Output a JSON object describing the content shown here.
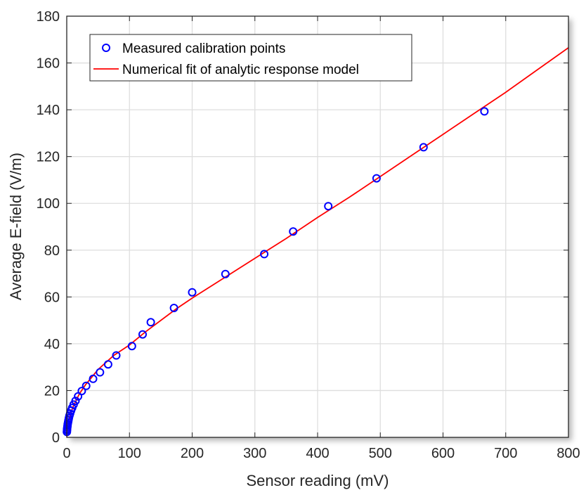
{
  "chart_data": {
    "type": "scatter",
    "title": "",
    "xlabel": "Sensor reading (mV)",
    "ylabel": "Average E-field (V/m)",
    "xlim": [
      0,
      800
    ],
    "ylim": [
      0,
      180
    ],
    "xticks": [
      0,
      100,
      200,
      300,
      400,
      500,
      600,
      700,
      800
    ],
    "yticks": [
      0,
      20,
      40,
      60,
      80,
      100,
      120,
      140,
      160,
      180
    ],
    "grid": true,
    "legend_position": "top-left",
    "series": [
      {
        "name": "Measured calibration points",
        "kind": "markers",
        "marker": "circle",
        "color": "#0000ff",
        "x": [
          0.2,
          0.4,
          0.6,
          0.9,
          1.2,
          1.6,
          2.1,
          2.7,
          3.4,
          4.3,
          5.4,
          6.8,
          8.6,
          11,
          14,
          18,
          24,
          31,
          42,
          53,
          66,
          79,
          104,
          121,
          134,
          171,
          200,
          253,
          315,
          361,
          417,
          494,
          569,
          666
        ],
        "y": [
          2.3,
          3.0,
          3.6,
          4.3,
          5.0,
          5.7,
          6.5,
          7.3,
          8.2,
          9.2,
          10.2,
          11.4,
          12.6,
          14.0,
          15.6,
          17.5,
          19.8,
          22.0,
          25.0,
          27.8,
          31.2,
          35.0,
          39.0,
          44.0,
          49.2,
          55.3,
          62.0,
          69.8,
          78.3,
          88.0,
          98.8,
          110.7,
          124.0,
          139.3
        ]
      },
      {
        "name": "Numerical fit of analytic response model",
        "kind": "line",
        "color": "#ff0000",
        "x": [
          0,
          1,
          2,
          5,
          10,
          20,
          30,
          50,
          75,
          100,
          125,
          150,
          175,
          200,
          250,
          300,
          350,
          400,
          450,
          500,
          550,
          600,
          650,
          700,
          750,
          800
        ],
        "y": [
          0,
          3.5,
          5.5,
          9.0,
          13.0,
          18.5,
          22.5,
          29.0,
          35.0,
          39.5,
          45.0,
          50.0,
          55.0,
          59.5,
          68.0,
          76.5,
          85.0,
          94.0,
          102.5,
          111.5,
          120.5,
          129.5,
          138.5,
          147.5,
          157.0,
          166.5
        ]
      }
    ]
  }
}
